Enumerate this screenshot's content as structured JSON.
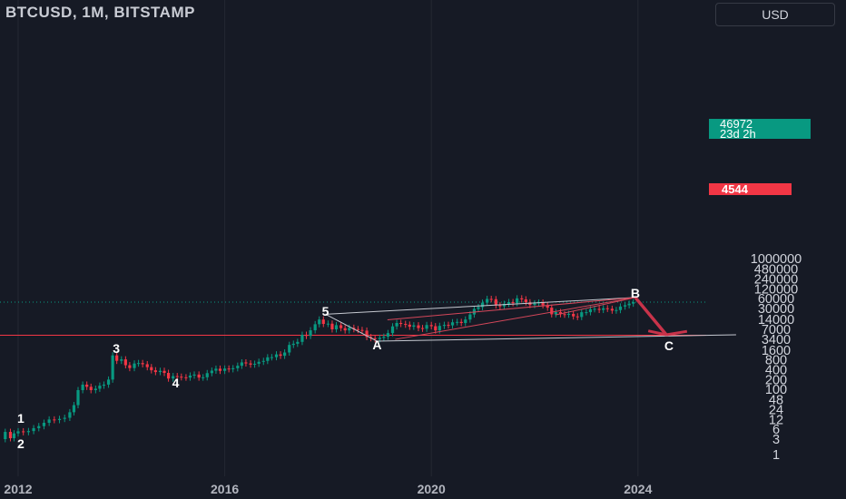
{
  "header": {
    "title": "BTCUSD, 1M, BITSTAMP",
    "currency_button": "USD"
  },
  "price_tag": {
    "price": "46972",
    "countdown": "23d 2h"
  },
  "level_tag": {
    "price": "4544"
  },
  "colors": {
    "background": "#161a25",
    "grid": "#242833",
    "up": "#089981",
    "down": "#f23645",
    "wave_line": "#c5c8d0",
    "projection": "#c8334a"
  },
  "chart_data": {
    "type": "candlestick",
    "y_scale": "log",
    "y_ticks": [
      "1000000",
      "480000",
      "240000",
      "120000",
      "60000",
      "30000",
      "14000",
      "7000",
      "3400",
      "1600",
      "800",
      "400",
      "200",
      "100",
      "48",
      "24",
      "12",
      "6",
      "3",
      "1"
    ],
    "x_ticks": [
      "2012",
      "2016",
      "2020",
      "2024"
    ],
    "horizontal_level": 4544,
    "last_price": 46972,
    "wave_labels": [
      {
        "label": "1",
        "date": 2012.05,
        "price": 13
      },
      {
        "label": "2",
        "date": 2012.05,
        "price": 2.2
      },
      {
        "label": "3",
        "date": 2013.9,
        "price": 1800
      },
      {
        "label": "4",
        "date": 2015.05,
        "price": 160
      },
      {
        "label": "5",
        "date": 2017.95,
        "price": 25000
      },
      {
        "label": "A",
        "date": 2018.95,
        "price": 2300
      },
      {
        "label": "B",
        "date": 2023.95,
        "price": 90000
      },
      {
        "label": "C",
        "date": 2024.6,
        "price": 2200
      }
    ],
    "candles_approx": [
      [
        2011.75,
        3,
        5
      ],
      [
        2011.85,
        5,
        3.2
      ],
      [
        2011.92,
        3.2,
        4.5
      ],
      [
        2012.0,
        4.5,
        5.2
      ],
      [
        2012.1,
        5.2,
        4.9
      ],
      [
        2012.2,
        4.9,
        5.3
      ],
      [
        2012.3,
        5.3,
        6.5
      ],
      [
        2012.4,
        6.5,
        7.5
      ],
      [
        2012.5,
        7.5,
        9.5
      ],
      [
        2012.6,
        9.5,
        12
      ],
      [
        2012.7,
        12,
        11.5
      ],
      [
        2012.8,
        11.5,
        12.5
      ],
      [
        2012.9,
        12.5,
        13.5
      ],
      [
        2013.0,
        13.5,
        20
      ],
      [
        2013.08,
        20,
        33
      ],
      [
        2013.16,
        33,
        95
      ],
      [
        2013.25,
        95,
        140
      ],
      [
        2013.33,
        140,
        120
      ],
      [
        2013.41,
        120,
        95
      ],
      [
        2013.5,
        95,
        105
      ],
      [
        2013.58,
        105,
        130
      ],
      [
        2013.66,
        130,
        140
      ],
      [
        2013.75,
        140,
        200
      ],
      [
        2013.83,
        200,
        1100
      ],
      [
        2013.91,
        1100,
        750
      ],
      [
        2014.0,
        750,
        830
      ],
      [
        2014.08,
        830,
        550
      ],
      [
        2014.16,
        550,
        450
      ],
      [
        2014.25,
        450,
        620
      ],
      [
        2014.33,
        620,
        640
      ],
      [
        2014.41,
        640,
        590
      ],
      [
        2014.5,
        590,
        480
      ],
      [
        2014.58,
        480,
        385
      ],
      [
        2014.66,
        385,
        340
      ],
      [
        2014.75,
        340,
        370
      ],
      [
        2014.83,
        370,
        320
      ],
      [
        2014.91,
        320,
        215
      ],
      [
        2015.0,
        215,
        255
      ],
      [
        2015.08,
        255,
        245
      ],
      [
        2015.16,
        245,
        235
      ],
      [
        2015.25,
        235,
        230
      ],
      [
        2015.33,
        230,
        265
      ],
      [
        2015.41,
        265,
        285
      ],
      [
        2015.5,
        285,
        230
      ],
      [
        2015.58,
        230,
        235
      ],
      [
        2015.66,
        235,
        315
      ],
      [
        2015.75,
        315,
        375
      ],
      [
        2015.83,
        375,
        430
      ],
      [
        2015.91,
        430,
        370
      ],
      [
        2016.0,
        370,
        435
      ],
      [
        2016.08,
        435,
        415
      ],
      [
        2016.16,
        415,
        445
      ],
      [
        2016.25,
        445,
        530
      ],
      [
        2016.33,
        530,
        670
      ],
      [
        2016.41,
        670,
        625
      ],
      [
        2016.5,
        625,
        575
      ],
      [
        2016.58,
        575,
        610
      ],
      [
        2016.66,
        610,
        700
      ],
      [
        2016.75,
        700,
        745
      ],
      [
        2016.83,
        745,
        960
      ],
      [
        2016.91,
        960,
        970
      ],
      [
        2017.0,
        970,
        1180
      ],
      [
        2017.08,
        1180,
        1070
      ],
      [
        2017.16,
        1070,
        1350
      ],
      [
        2017.25,
        1350,
        2300
      ],
      [
        2017.33,
        2300,
        2500
      ],
      [
        2017.41,
        2500,
        2850
      ],
      [
        2017.5,
        2850,
        4700
      ],
      [
        2017.58,
        4700,
        4340
      ],
      [
        2017.66,
        4340,
        6450
      ],
      [
        2017.75,
        6450,
        9900
      ],
      [
        2017.83,
        9900,
        13800
      ],
      [
        2017.91,
        13800,
        10100
      ],
      [
        2018.0,
        10100,
        10300
      ],
      [
        2018.08,
        10300,
        6900
      ],
      [
        2018.16,
        6900,
        9250
      ],
      [
        2018.25,
        9250,
        7500
      ],
      [
        2018.33,
        7500,
        6400
      ],
      [
        2018.41,
        6400,
        7700
      ],
      [
        2018.5,
        7700,
        7000
      ],
      [
        2018.58,
        7000,
        6600
      ],
      [
        2018.66,
        6600,
        6300
      ],
      [
        2018.75,
        6300,
        4000
      ],
      [
        2018.83,
        4000,
        3700
      ],
      [
        2018.91,
        3700,
        3450
      ],
      [
        2019.0,
        3450,
        3800
      ],
      [
        2019.08,
        3800,
        4100
      ],
      [
        2019.16,
        4100,
        5300
      ],
      [
        2019.25,
        5300,
        8500
      ],
      [
        2019.33,
        8500,
        10800
      ],
      [
        2019.41,
        10800,
        10100
      ],
      [
        2019.5,
        10100,
        9600
      ],
      [
        2019.58,
        9600,
        8300
      ],
      [
        2019.66,
        8300,
        9150
      ],
      [
        2019.75,
        9150,
        7550
      ],
      [
        2019.83,
        7550,
        7200
      ],
      [
        2019.91,
        7200,
        9350
      ],
      [
        2020.0,
        9350,
        8600
      ],
      [
        2020.08,
        8600,
        6400
      ],
      [
        2020.16,
        6400,
        8800
      ],
      [
        2020.25,
        8800,
        9450
      ],
      [
        2020.33,
        9450,
        9140
      ],
      [
        2020.41,
        9140,
        11350
      ],
      [
        2020.5,
        11350,
        11650
      ],
      [
        2020.58,
        11650,
        10780
      ],
      [
        2020.66,
        10780,
        13800
      ],
      [
        2020.75,
        13800,
        19700
      ],
      [
        2020.83,
        19700,
        29000
      ],
      [
        2020.91,
        29000,
        33100
      ],
      [
        2020.99,
        33100,
        45200
      ],
      [
        2021.08,
        45200,
        58800
      ],
      [
        2021.16,
        58800,
        57700
      ],
      [
        2021.25,
        57700,
        37300
      ],
      [
        2021.33,
        37300,
        35000
      ],
      [
        2021.41,
        35000,
        41500
      ],
      [
        2021.5,
        41500,
        47100
      ],
      [
        2021.58,
        47100,
        43800
      ],
      [
        2021.66,
        43800,
        61300
      ],
      [
        2021.75,
        61300,
        57000
      ],
      [
        2021.83,
        57000,
        46300
      ],
      [
        2021.91,
        46300,
        38500
      ],
      [
        2022.0,
        38500,
        43200
      ],
      [
        2022.08,
        43200,
        45500
      ],
      [
        2022.16,
        45500,
        37700
      ],
      [
        2022.25,
        37700,
        31800
      ],
      [
        2022.33,
        31800,
        19900
      ],
      [
        2022.41,
        19900,
        23300
      ],
      [
        2022.5,
        23300,
        20100
      ],
      [
        2022.58,
        20100,
        19400
      ],
      [
        2022.66,
        19400,
        20500
      ],
      [
        2022.75,
        20500,
        17200
      ],
      [
        2022.83,
        17200,
        16500
      ],
      [
        2022.91,
        16500,
        23100
      ],
      [
        2023.0,
        23100,
        23100
      ],
      [
        2023.08,
        23100,
        28500
      ],
      [
        2023.16,
        28500,
        29250
      ],
      [
        2023.25,
        29250,
        27200
      ],
      [
        2023.33,
        27200,
        30500
      ],
      [
        2023.41,
        30500,
        29300
      ],
      [
        2023.5,
        29300,
        25900
      ],
      [
        2023.58,
        25900,
        26900
      ],
      [
        2023.66,
        26900,
        34500
      ],
      [
        2023.75,
        34500,
        37700
      ],
      [
        2023.83,
        37700,
        42300
      ],
      [
        2023.91,
        42300,
        46972
      ]
    ]
  }
}
